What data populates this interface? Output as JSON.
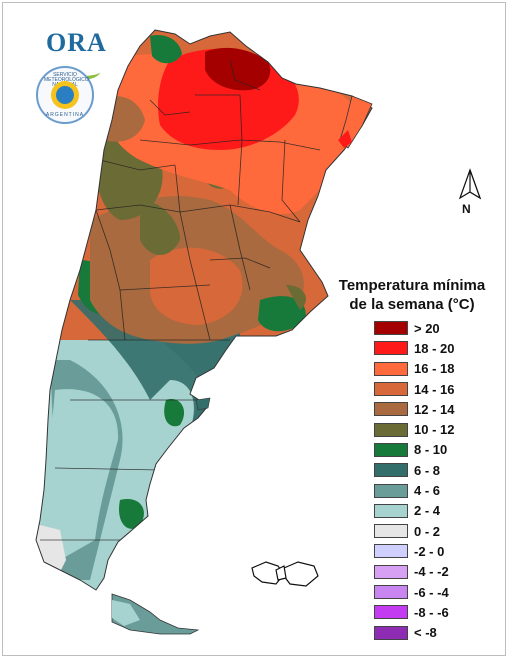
{
  "logos": {
    "ora_text": "ORA",
    "smn_text": "ARGENTINA",
    "smn_top_text": "SERVICIO METEOROLÓGICO NACIONAL"
  },
  "north_label": "N",
  "legend": {
    "title_line1": "Temperatura mínima",
    "title_line2": "de la semana (°C)",
    "items": [
      {
        "label": "> 20",
        "color": "#a50000"
      },
      {
        "label": "18 - 20",
        "color": "#ff1a1a"
      },
      {
        "label": "16 - 18",
        "color": "#ff6a3d"
      },
      {
        "label": "14 - 16",
        "color": "#d6683a"
      },
      {
        "label": "12 - 14",
        "color": "#a86a3e"
      },
      {
        "label": "10 - 12",
        "color": "#6b6b36"
      },
      {
        "label": "8 - 10",
        "color": "#177a3a"
      },
      {
        "label": "6 - 8",
        "color": "#336e6a"
      },
      {
        "label": "4 - 6",
        "color": "#6a9d9a"
      },
      {
        "label": "2 - 4",
        "color": "#a6d3d0"
      },
      {
        "label": "0 - 2",
        "color": "#e6e6e6"
      },
      {
        "label": "-2 - 0",
        "color": "#cfd0ff"
      },
      {
        "label": "-4 - -2",
        "color": "#d8a0f2"
      },
      {
        "label": "-6 - -4",
        "color": "#c986f1"
      },
      {
        "label": "-8 - -6",
        "color": "#c33cf2"
      },
      {
        "label": "< -8",
        "color": "#8e2db4"
      }
    ]
  }
}
